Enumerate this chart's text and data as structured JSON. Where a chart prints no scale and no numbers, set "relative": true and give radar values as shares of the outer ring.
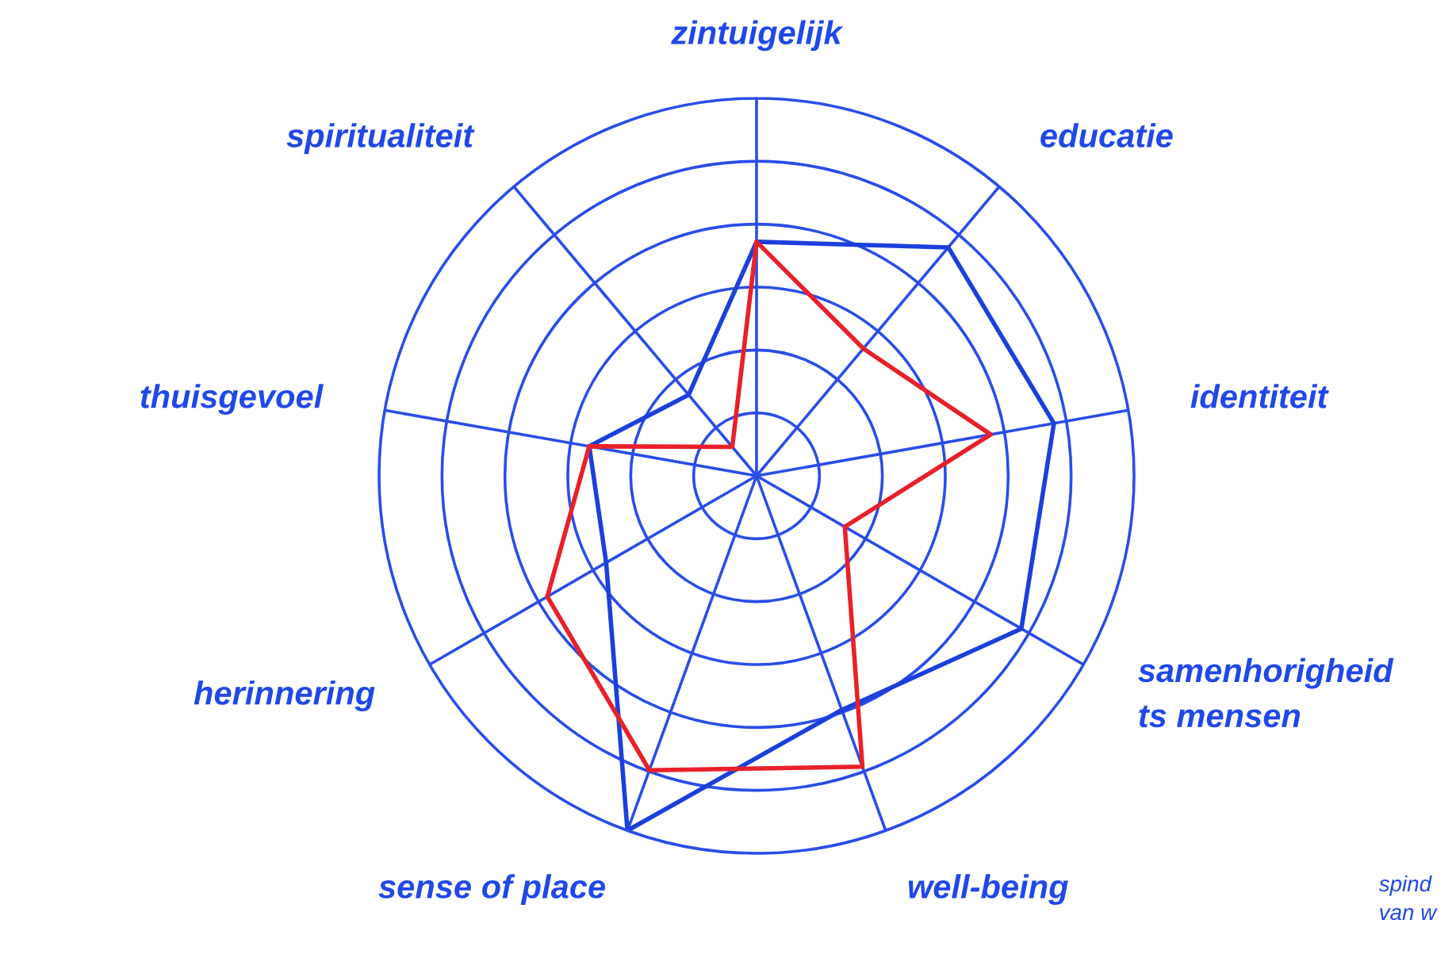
{
  "chart_data": {
    "type": "radar",
    "relative": true,
    "grid": true,
    "marker": "none",
    "line_style": "solid",
    "categories": [
      "zintuigelijk",
      "educatie",
      "identiteit",
      "samenhorigheid\nts mensen",
      "well-being",
      "sense of place",
      "herinnering",
      "thuisgevoel",
      "spiritualiteit"
    ],
    "series": [
      {
        "color": "#1c3fdc",
        "values": [
          0.62,
          0.79,
          0.8,
          0.81,
          0.66,
          1.0,
          0.46,
          0.45,
          0.28
        ]
      },
      {
        "color": "#e8202a",
        "values": [
          0.62,
          0.44,
          0.63,
          0.27,
          0.82,
          0.83,
          0.64,
          0.45,
          0.1
        ]
      }
    ],
    "annotations": [
      "spind\nvan w"
    ]
  }
}
